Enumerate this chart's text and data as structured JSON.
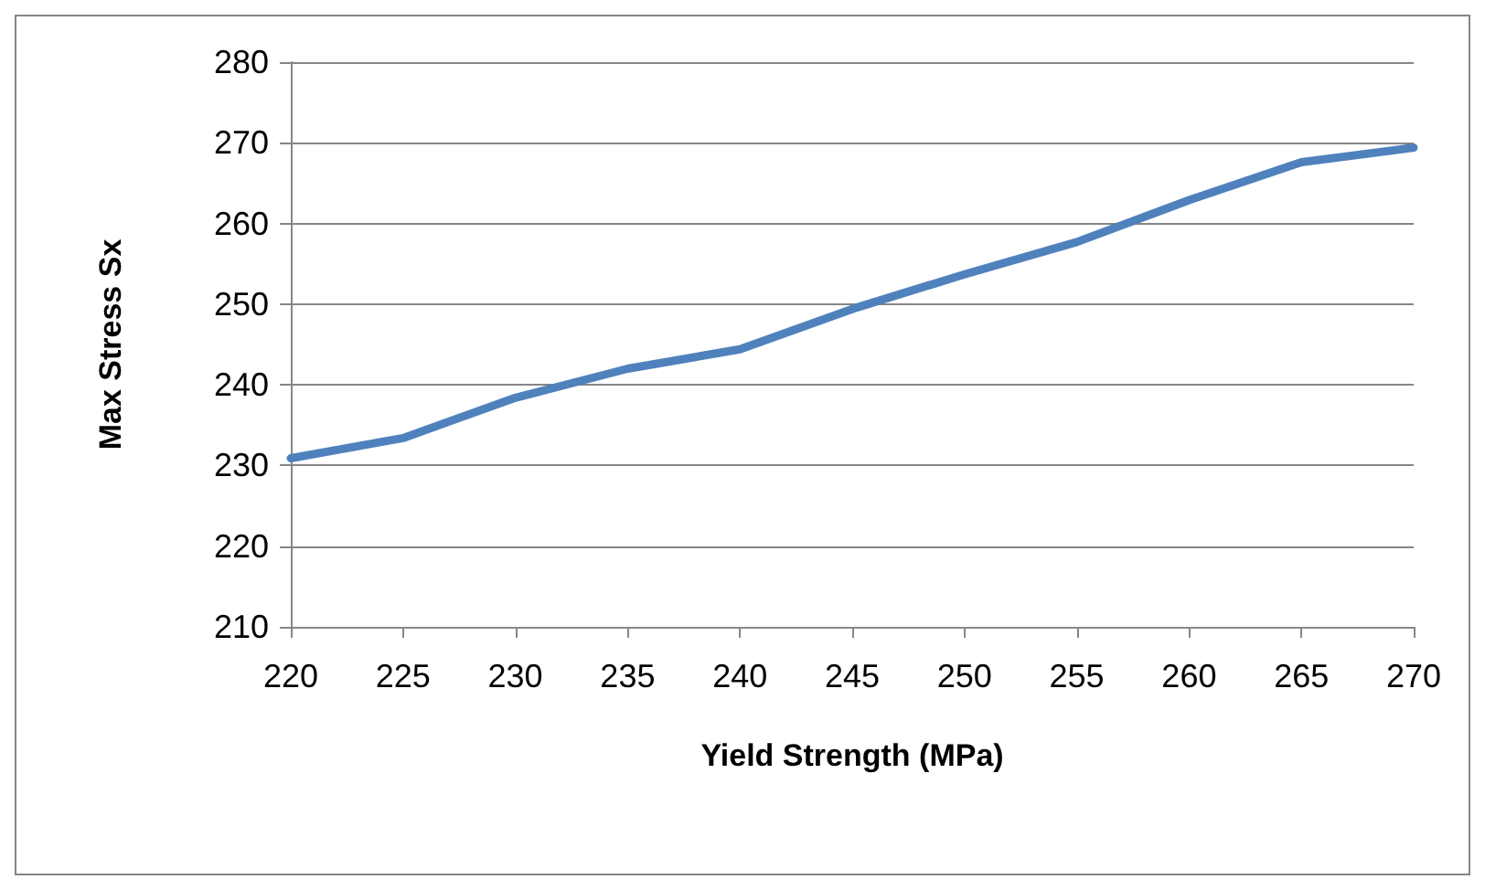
{
  "chart_data": {
    "type": "line",
    "xlabel": "Yield Strength (MPa)",
    "ylabel": "Max Stress Sx",
    "x": [
      220,
      225,
      230,
      235,
      240,
      245,
      250,
      255,
      260,
      265,
      270
    ],
    "series": [
      {
        "color": "#4f81bd",
        "values": [
          230.9,
          233.4,
          238.4,
          242,
          244.4,
          249.4,
          253.7,
          257.7,
          262.9,
          267.6,
          269.4
        ]
      }
    ],
    "xlim": [
      220,
      270
    ],
    "xticks": [
      220,
      225,
      230,
      235,
      240,
      245,
      250,
      255,
      260,
      265,
      270
    ],
    "ylim": [
      210,
      280
    ],
    "yticks": [
      210,
      220,
      230,
      240,
      250,
      260,
      270,
      280
    ],
    "grid": "y",
    "marker": "none",
    "line_style": "solid"
  }
}
